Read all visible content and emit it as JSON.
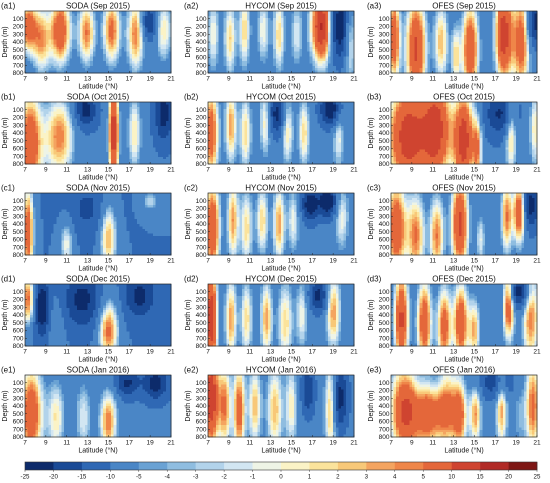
{
  "figure": {
    "x_label": "Latitude (°N)",
    "y_label": "Depth (m)"
  },
  "panels": [
    {
      "label": "(a1)",
      "title": "SODA (Sep 2015)"
    },
    {
      "label": "(a2)",
      "title": "HYCOM (Sep 2015)"
    },
    {
      "label": "(a3)",
      "title": "OFES (Sep 2015)"
    },
    {
      "label": "(b1)",
      "title": "SODA (Oct 2015)"
    },
    {
      "label": "(b2)",
      "title": "HYCOM (Oct 2015)"
    },
    {
      "label": "(b3)",
      "title": "OFES (Oct 2015)"
    },
    {
      "label": "(c1)",
      "title": "SODA (Nov 2015)"
    },
    {
      "label": "(c2)",
      "title": "HYCOM (Nov 2015)"
    },
    {
      "label": "(c3)",
      "title": "OFES (Nov 2015)"
    },
    {
      "label": "(d1)",
      "title": "SODA (Dec 2015)"
    },
    {
      "label": "(d2)",
      "title": "HYCOM (Dec 2015)"
    },
    {
      "label": "(d3)",
      "title": "OFES (Dec 2015)"
    },
    {
      "label": "(e1)",
      "title": "SODA (Jan 2016)"
    },
    {
      "label": "(e2)",
      "title": "HYCOM (Jan 2016)"
    },
    {
      "label": "(e3)",
      "title": "OFES (Jan 2016)"
    }
  ],
  "chart_data": {
    "type": "heatmap",
    "x_ticks": [
      "7",
      "9",
      "11",
      "13",
      "15",
      "17",
      "19",
      "21"
    ],
    "xlim": [
      7,
      21
    ],
    "y_ticks": [
      "100",
      "200",
      "300",
      "400",
      "500",
      "600",
      "700",
      "800"
    ],
    "ylim": [
      0,
      800
    ],
    "y_inverted": true,
    "colorbar": {
      "tick_labels": [
        "-25",
        "-20",
        "-15",
        "-10",
        "-5",
        "-4",
        "-3",
        "-2",
        "-1",
        "0",
        "1",
        "2",
        "3",
        "4",
        "5",
        "10",
        "15",
        "20",
        "25"
      ],
      "levels": [
        -25,
        -20,
        -15,
        -10,
        -5,
        -4,
        -3,
        -2,
        -1,
        0,
        1,
        2,
        3,
        4,
        5,
        10,
        15,
        20,
        25
      ],
      "colors": [
        "#0d2b6b",
        "#1a4a96",
        "#2f68b4",
        "#4a86c6",
        "#6aa2d4",
        "#8fbde0",
        "#b2d3eb",
        "#d2e6f2",
        "#eef4e6",
        "#fbf3c6",
        "#fbe39b",
        "#f8c878",
        "#f4a460",
        "#ef8649",
        "#e4673a",
        "#cf4430",
        "#b12a26",
        "#7e1715"
      ]
    },
    "panels": [
      {
        "name": "a1",
        "base": -9,
        "features": [
          [
            7.3,
            200,
            0.6,
            250,
            16
          ],
          [
            8.6,
            380,
            0.6,
            320,
            12
          ],
          [
            10.4,
            250,
            0.7,
            320,
            18
          ],
          [
            12.9,
            280,
            0.6,
            300,
            14
          ],
          [
            15.3,
            250,
            0.6,
            320,
            15
          ],
          [
            17.6,
            300,
            0.6,
            350,
            14
          ],
          [
            18.9,
            150,
            0.5,
            150,
            -12
          ],
          [
            20.3,
            250,
            0.6,
            300,
            10
          ]
        ]
      },
      {
        "name": "a2",
        "base": -8,
        "features": [
          [
            7.5,
            300,
            0.4,
            350,
            8
          ],
          [
            9.1,
            350,
            0.4,
            350,
            10
          ],
          [
            10.5,
            250,
            0.4,
            350,
            10
          ],
          [
            12.3,
            250,
            0.4,
            300,
            8
          ],
          [
            13.8,
            300,
            0.4,
            350,
            10
          ],
          [
            15.5,
            300,
            0.4,
            300,
            7
          ],
          [
            17.9,
            200,
            0.7,
            330,
            24
          ],
          [
            19.6,
            200,
            0.7,
            300,
            -18
          ],
          [
            20.6,
            350,
            0.4,
            400,
            10
          ]
        ]
      },
      {
        "name": "a3",
        "base": -9,
        "features": [
          [
            7.3,
            350,
            0.4,
            420,
            18
          ],
          [
            9.4,
            500,
            0.7,
            500,
            20
          ],
          [
            11.8,
            400,
            0.5,
            380,
            12
          ],
          [
            13.2,
            600,
            0.3,
            300,
            10
          ],
          [
            14.6,
            500,
            0.6,
            450,
            18
          ],
          [
            17.8,
            300,
            0.6,
            450,
            22
          ],
          [
            19.5,
            400,
            0.6,
            500,
            16
          ],
          [
            20.8,
            150,
            0.5,
            200,
            -14
          ]
        ]
      },
      {
        "name": "b1",
        "base": -9,
        "features": [
          [
            7.5,
            550,
            0.8,
            500,
            18
          ],
          [
            10.3,
            450,
            1.0,
            380,
            14
          ],
          [
            15.5,
            400,
            0.35,
            500,
            22
          ],
          [
            17.5,
            400,
            0.5,
            380,
            10
          ],
          [
            20.3,
            150,
            0.6,
            250,
            -14
          ],
          [
            12.8,
            100,
            0.7,
            150,
            -14
          ]
        ]
      },
      {
        "name": "b2",
        "base": -8,
        "features": [
          [
            7.3,
            400,
            0.5,
            420,
            16
          ],
          [
            9.2,
            300,
            0.4,
            350,
            12
          ],
          [
            10.6,
            400,
            0.4,
            350,
            10
          ],
          [
            12.5,
            250,
            0.4,
            300,
            10
          ],
          [
            13.6,
            150,
            0.6,
            200,
            -14
          ],
          [
            14.6,
            350,
            0.4,
            320,
            10
          ],
          [
            16.2,
            400,
            0.4,
            320,
            10
          ],
          [
            19.5,
            400,
            0.4,
            350,
            8
          ],
          [
            18.8,
            100,
            0.7,
            150,
            -18
          ]
        ]
      },
      {
        "name": "b3",
        "base": -9,
        "features": [
          [
            8.6,
            450,
            1.4,
            500,
            22
          ],
          [
            11.4,
            350,
            1.0,
            500,
            20
          ],
          [
            14.0,
            500,
            0.7,
            450,
            22
          ],
          [
            15.3,
            600,
            0.3,
            300,
            12
          ],
          [
            18.5,
            400,
            0.4,
            400,
            12
          ],
          [
            20.8,
            350,
            0.4,
            380,
            10
          ],
          [
            17.5,
            150,
            1.0,
            200,
            -12
          ]
        ]
      },
      {
        "name": "c1",
        "base": -10,
        "features": [
          [
            7.3,
            500,
            0.4,
            450,
            18
          ],
          [
            11.0,
            650,
            0.5,
            250,
            10
          ],
          [
            15.0,
            550,
            0.6,
            350,
            14
          ],
          [
            19.0,
            100,
            0.6,
            100,
            8
          ],
          [
            13.0,
            200,
            1.5,
            250,
            -6
          ]
        ]
      },
      {
        "name": "c2",
        "base": -8,
        "features": [
          [
            7.4,
            450,
            0.5,
            420,
            18
          ],
          [
            9.4,
            350,
            0.4,
            380,
            12
          ],
          [
            10.7,
            450,
            0.4,
            350,
            10
          ],
          [
            12.2,
            350,
            0.4,
            320,
            10
          ],
          [
            13.8,
            400,
            0.4,
            350,
            12
          ],
          [
            15.2,
            350,
            0.4,
            300,
            8
          ],
          [
            16.8,
            150,
            0.6,
            150,
            -16
          ],
          [
            18.5,
            100,
            0.6,
            150,
            -18
          ],
          [
            19.8,
            300,
            0.5,
            320,
            8
          ]
        ]
      },
      {
        "name": "c3",
        "base": -9,
        "features": [
          [
            7.5,
            450,
            0.7,
            450,
            18
          ],
          [
            9.4,
            550,
            0.6,
            400,
            14
          ],
          [
            11.4,
            550,
            0.5,
            380,
            14
          ],
          [
            13.6,
            400,
            0.6,
            450,
            20
          ],
          [
            15.6,
            600,
            0.3,
            250,
            8
          ],
          [
            18.1,
            300,
            0.4,
            350,
            14
          ],
          [
            19.3,
            250,
            0.4,
            300,
            18
          ],
          [
            20.4,
            150,
            0.5,
            200,
            -14
          ]
        ]
      },
      {
        "name": "d1",
        "base": -10,
        "features": [
          [
            7.3,
            200,
            0.5,
            250,
            16
          ],
          [
            10.0,
            550,
            0.6,
            300,
            4
          ],
          [
            15.0,
            600,
            0.7,
            300,
            16
          ],
          [
            8.6,
            300,
            0.5,
            250,
            -16
          ],
          [
            12.5,
            200,
            1.2,
            250,
            -12
          ],
          [
            18.0,
            150,
            1.0,
            200,
            -12
          ]
        ]
      },
      {
        "name": "d2",
        "base": -8,
        "features": [
          [
            7.3,
            450,
            0.4,
            500,
            22
          ],
          [
            9.2,
            450,
            0.4,
            380,
            12
          ],
          [
            10.7,
            450,
            0.4,
            350,
            10
          ],
          [
            12.6,
            450,
            0.4,
            350,
            12
          ],
          [
            14.4,
            500,
            0.5,
            380,
            10
          ],
          [
            16.0,
            400,
            0.4,
            320,
            8
          ],
          [
            17.6,
            150,
            0.6,
            150,
            -14
          ],
          [
            19.0,
            350,
            0.5,
            350,
            12
          ]
        ]
      },
      {
        "name": "d3",
        "base": -9,
        "features": [
          [
            8.0,
            450,
            0.5,
            450,
            20
          ],
          [
            10.2,
            500,
            0.5,
            400,
            18
          ],
          [
            12.1,
            550,
            0.5,
            380,
            16
          ],
          [
            13.7,
            500,
            0.5,
            380,
            18
          ],
          [
            15.0,
            600,
            0.4,
            300,
            12
          ],
          [
            18.3,
            250,
            0.4,
            350,
            18
          ],
          [
            20.4,
            400,
            0.6,
            500,
            14
          ],
          [
            19.3,
            100,
            0.7,
            150,
            -16
          ]
        ]
      },
      {
        "name": "e1",
        "base": -9,
        "features": [
          [
            7.6,
            500,
            0.8,
            450,
            18
          ],
          [
            10.0,
            550,
            0.6,
            350,
            10
          ],
          [
            12.6,
            550,
            0.6,
            350,
            8
          ],
          [
            15.0,
            600,
            0.6,
            300,
            14
          ],
          [
            19.5,
            100,
            0.8,
            150,
            -14
          ],
          [
            16.8,
            100,
            0.8,
            120,
            -12
          ]
        ]
      },
      {
        "name": "e2",
        "base": -7,
        "features": [
          [
            7.3,
            300,
            0.5,
            420,
            22
          ],
          [
            8.6,
            400,
            0.4,
            380,
            12
          ],
          [
            10.0,
            450,
            0.4,
            400,
            14
          ],
          [
            11.5,
            400,
            0.4,
            350,
            10
          ],
          [
            13.4,
            450,
            0.5,
            380,
            10
          ],
          [
            15.0,
            400,
            0.4,
            350,
            8
          ],
          [
            16.6,
            200,
            0.5,
            250,
            -12
          ],
          [
            18.8,
            400,
            0.4,
            400,
            14
          ],
          [
            19.6,
            300,
            0.6,
            300,
            -16
          ]
        ]
      },
      {
        "name": "e3",
        "base": -8,
        "features": [
          [
            8.4,
            450,
            1.0,
            420,
            20
          ],
          [
            10.6,
            400,
            0.8,
            380,
            16
          ],
          [
            12.3,
            350,
            0.7,
            400,
            16
          ],
          [
            13.6,
            500,
            0.5,
            350,
            14
          ],
          [
            15.1,
            500,
            0.4,
            300,
            12
          ],
          [
            17.6,
            400,
            0.4,
            400,
            12
          ],
          [
            19.3,
            500,
            0.4,
            350,
            4
          ],
          [
            20.6,
            400,
            0.5,
            450,
            14
          ],
          [
            11.0,
            100,
            1.5,
            200,
            -8
          ],
          [
            17.0,
            100,
            1.2,
            150,
            -10
          ]
        ]
      }
    ]
  }
}
